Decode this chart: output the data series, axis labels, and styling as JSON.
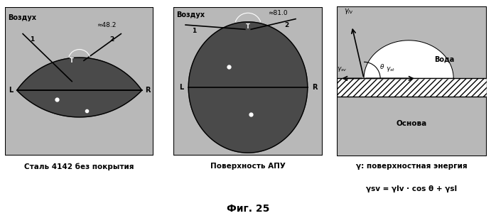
{
  "title": "Фиг. 25",
  "panel1_label": "Сталь 4142 без покрытия",
  "panel2_label": "Поверхность АПУ",
  "panel3_label1": "γ: поверхностная энергия",
  "panel3_label2": "γsv = γlv · cos θ + γsl",
  "panel1_air": "Воздух",
  "panel2_air": "Воздух",
  "panel1_angle": "≈48.2",
  "panel2_angle": "≈81.0",
  "bg_color": "#b8b8b8",
  "droplet_color": "#4a4a4a",
  "water_label": "Вода",
  "osnova_label": "Основа"
}
